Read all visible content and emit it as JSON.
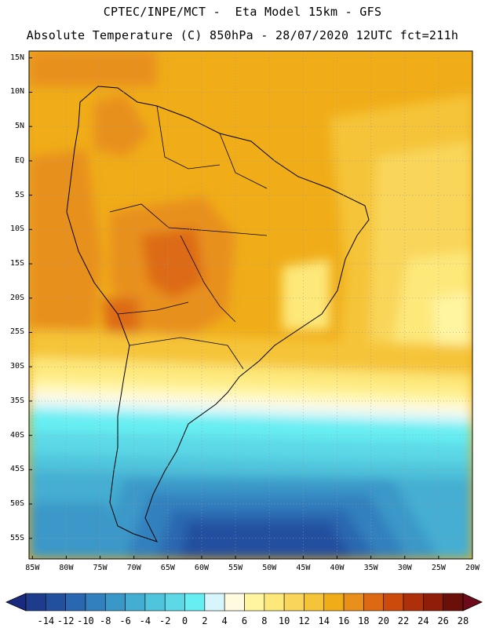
{
  "header": {
    "line1": "CPTEC/INPE/MCT -  Eta Model 15km - GFS",
    "line2": "Absolute Temperature (C) 850hPa - 28/07/2020 12UTC fct=211h"
  },
  "axes": {
    "y_labels": [
      "15N",
      "10N",
      "5N",
      "EQ",
      "5S",
      "10S",
      "15S",
      "20S",
      "25S",
      "30S",
      "35S",
      "40S",
      "45S",
      "50S",
      "55S"
    ],
    "x_labels": [
      "85W",
      "80W",
      "75W",
      "70W",
      "65W",
      "60W",
      "55W",
      "50W",
      "45W",
      "40W",
      "35W",
      "30W",
      "25W",
      "20W"
    ],
    "lat_range": [
      -58,
      16
    ],
    "lon_range": [
      -85.5,
      -20
    ],
    "grid": "dotted"
  },
  "colorbar": {
    "labels": [
      "-14",
      "-12",
      "-10",
      "-8",
      "-6",
      "-4",
      "-2",
      "0",
      "2",
      "4",
      "6",
      "8",
      "10",
      "12",
      "14",
      "16",
      "18",
      "20",
      "22",
      "24",
      "26",
      "28"
    ],
    "colors": [
      "#1e3c8c",
      "#22509f",
      "#2968b0",
      "#3280be",
      "#3a98c8",
      "#44aed2",
      "#50c4dc",
      "#5cd8e6",
      "#66eef2",
      "#d6f6fb",
      "#fffae0",
      "#fff4a0",
      "#fde87a",
      "#f9d65a",
      "#f5c438",
      "#f0ad18",
      "#e8901a",
      "#dd6a12",
      "#cc4a0c",
      "#ad300a",
      "#8e1e08",
      "#6a1008"
    ],
    "end_colors": [
      "#1a2a80",
      "#6e0a1a"
    ]
  },
  "map": {
    "land_outline": "South America country borders"
  }
}
